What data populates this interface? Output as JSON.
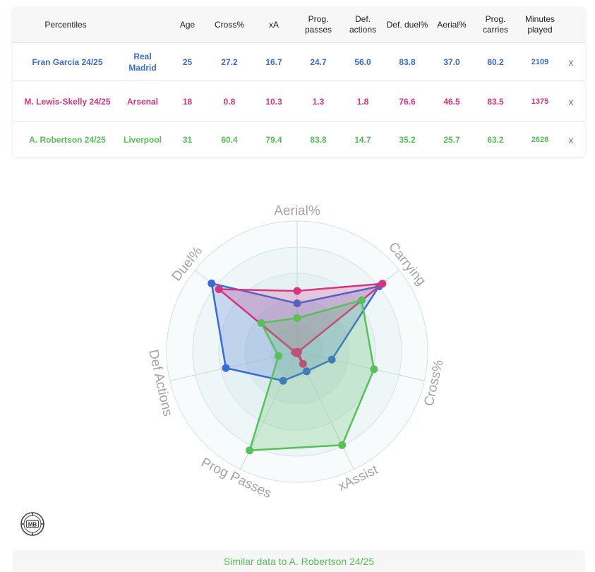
{
  "table": {
    "headers": {
      "percentiles": "Percentiles",
      "age": "Age",
      "cross": "Cross%",
      "xa": "xA",
      "prog_passes": "Prog. passes",
      "def_actions": "Def. actions",
      "def_duel": "Def. duel%",
      "aerial": "Aerial%",
      "prog_carries": "Prog. carries",
      "minutes": "Minutes played"
    },
    "rows": [
      {
        "player": "Fran García 24/25",
        "team": "Real Madrid",
        "age": "25",
        "cross": "27.2",
        "xa": "16.7",
        "prog_passes": "24.7",
        "def_actions": "56.0",
        "def_duel": "83.8",
        "aerial": "37.0",
        "prog_carries": "80.2",
        "minutes": "2109",
        "remove": "x",
        "color": "#3a6bd1"
      },
      {
        "player": "M. Lewis-Skelly 24/25",
        "team": "Arsenal",
        "age": "18",
        "cross": "0.8",
        "xa": "10.3",
        "prog_passes": "1.3",
        "def_actions": "1.8",
        "def_duel": "76.6",
        "aerial": "46.5",
        "prog_carries": "83.5",
        "minutes": "1375",
        "remove": "x",
        "color": "#d6357e"
      },
      {
        "player": "A. Robertson 24/25",
        "team": "Liverpool",
        "age": "31",
        "cross": "60.4",
        "xa": "79.4",
        "prog_passes": "83.8",
        "def_actions": "14.7",
        "def_duel": "35.2",
        "aerial": "25.7",
        "prog_carries": "63.2",
        "minutes": "2628",
        "remove": "x",
        "color": "#56c156"
      }
    ]
  },
  "chart_data": {
    "type": "radar",
    "axes": [
      "Aerial%",
      "Carrying",
      "Cross%",
      "xAssist",
      "Prog Passes",
      "Def Actions",
      "Duel%"
    ],
    "range": [
      0,
      100
    ],
    "series": [
      {
        "name": "Fran García 24/25",
        "color": "#3a6bd1",
        "values": [
          37.0,
          80.2,
          27.2,
          16.7,
          24.7,
          56.0,
          83.8
        ]
      },
      {
        "name": "M. Lewis-Skelly 24/25",
        "color": "#d6357e",
        "values": [
          46.5,
          83.5,
          0.8,
          10.3,
          1.3,
          1.8,
          76.6
        ]
      },
      {
        "name": "A. Robertson 24/25",
        "color": "#56c156",
        "values": [
          25.7,
          63.2,
          60.4,
          79.4,
          83.8,
          14.7,
          35.2
        ]
      }
    ]
  },
  "logo": {
    "text": "MB"
  },
  "footer": {
    "text": "Similar data to A. Robertson 24/25"
  }
}
